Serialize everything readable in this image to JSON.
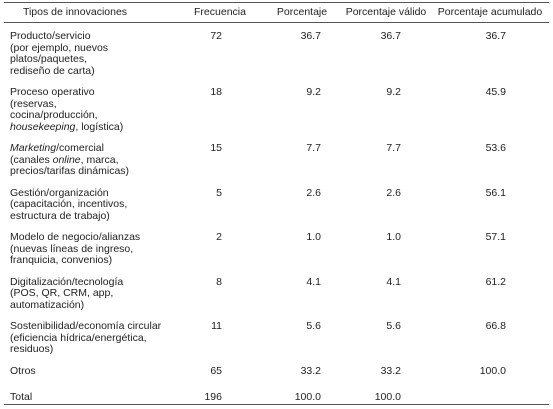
{
  "table": {
    "headers": [
      "Tipos de innovaciones",
      "Frecuencia",
      "Porcentaje",
      "Porcentaje válido",
      "Porcentaje acumulado"
    ],
    "rows": [
      {
        "label": [
          "Producto/servicio",
          "(por ejemplo, nuevos",
          "platos/paquetes,",
          "rediseño de carta)"
        ],
        "cells": [
          "72",
          "36.7",
          "36.7",
          "36.7"
        ]
      },
      {
        "label": [
          "Proceso operativo",
          "(reservas,",
          "cocina/producción,",
          [
            {
              "text": "housekeeping",
              "italic": true
            },
            ", logística)"
          ]
        ],
        "cells": [
          "18",
          "9.2",
          "9.2",
          "45.9"
        ]
      },
      {
        "label": [
          [
            {
              "text": "Marketing",
              "italic": true
            },
            "/comercial"
          ],
          [
            "(canales ",
            {
              "text": "online",
              "italic": true
            },
            ", marca,"
          ],
          "precios/tarifas dinámicas)"
        ],
        "cells": [
          "15",
          "7.7",
          "7.7",
          "53.6"
        ]
      },
      {
        "label": [
          "Gestión/organización",
          "(capacitación, incentivos,",
          "estructura de trabajo)"
        ],
        "cells": [
          "5",
          "2.6",
          "2.6",
          "56.1"
        ]
      },
      {
        "label": [
          "Modelo de negocio/alianzas",
          "(nuevas líneas de ingreso,",
          "franquicia, convenios)"
        ],
        "cells": [
          "2",
          "1.0",
          "1.0",
          "57.1"
        ]
      },
      {
        "label": [
          "Digitalización/tecnología",
          "(POS, QR, CRM, app,",
          "automatización)"
        ],
        "cells": [
          "8",
          "4.1",
          "4.1",
          "61.2"
        ]
      },
      {
        "label": [
          "Sostenibilidad/economía circular",
          "(eficiencia hídrica/energética,",
          "residuos)"
        ],
        "cells": [
          "11",
          "5.6",
          "5.6",
          "66.8"
        ]
      },
      {
        "label": [
          "Otros"
        ],
        "cells": [
          "65",
          "33.2",
          "33.2",
          "100.0"
        ]
      },
      {
        "label": [
          "Total"
        ],
        "cells": [
          "196",
          "100.0",
          "100.0"
        ]
      }
    ]
  }
}
